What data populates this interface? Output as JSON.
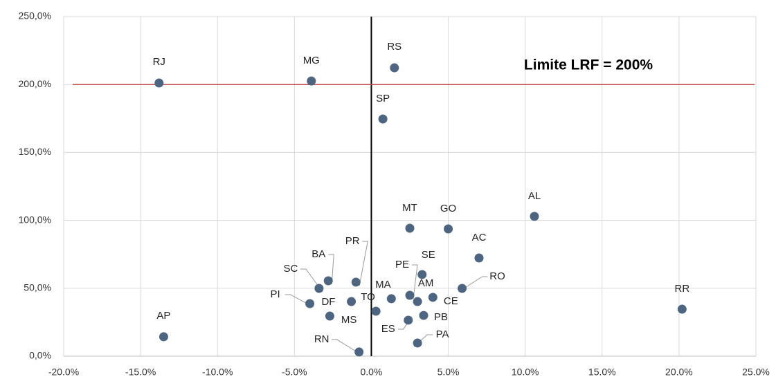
{
  "chart_data": {
    "type": "scatter",
    "point_labels": [
      "RJ",
      "MG",
      "RS",
      "SP",
      "AL",
      "MT",
      "GO",
      "AC",
      "SE",
      "RO",
      "PR",
      "BA",
      "SC",
      "PI",
      "DF",
      "TO",
      "MA",
      "PE",
      "AM",
      "CE",
      "MS",
      "ES",
      "PB",
      "PA",
      "RN",
      "AP",
      "RR"
    ],
    "x": [
      -13.8,
      -3.9,
      1.5,
      0.75,
      10.6,
      2.5,
      5.0,
      7.0,
      3.3,
      5.9,
      -1.0,
      -2.8,
      -3.4,
      -4.0,
      -2.7,
      -1.3,
      1.3,
      2.5,
      3.0,
      4.0,
      0.3,
      2.4,
      3.4,
      3.0,
      -0.8,
      -13.5,
      20.2
    ],
    "values": [
      201.1,
      202.6,
      212.3,
      174.6,
      102.9,
      94.2,
      93.7,
      72.3,
      60.1,
      49.9,
      54.5,
      55.5,
      49.9,
      38.7,
      29.5,
      40.2,
      42.3,
      44.8,
      40.2,
      43.3,
      33.1,
      26.5,
      30.0,
      9.7,
      3.1,
      14.3,
      34.6
    ],
    "color": "#4d6580",
    "xlim": [
      -20,
      25
    ],
    "xticks": [
      {
        "value": -20,
        "label": "-20.0%"
      },
      {
        "value": -15,
        "label": "-15.0%"
      },
      {
        "value": -10,
        "label": "-10.0%"
      },
      {
        "value": -5,
        "label": "-5.0%"
      },
      {
        "value": 0,
        "label": "0.0%"
      },
      {
        "value": 5,
        "label": "5.0%"
      },
      {
        "value": 10,
        "label": "10.0%"
      },
      {
        "value": 15,
        "label": "15.0%"
      },
      {
        "value": 20,
        "label": "20.0%"
      },
      {
        "value": 25,
        "label": "25.0%"
      }
    ],
    "ylim": [
      0,
      250
    ],
    "yticks": [
      {
        "value": 0,
        "label": "0,0%"
      },
      {
        "value": 50,
        "label": "50,0%"
      },
      {
        "value": 100,
        "label": "100,0%"
      },
      {
        "value": 150,
        "label": "150,0%"
      },
      {
        "value": 200,
        "label": "200,0%"
      },
      {
        "value": 250,
        "label": "250,0%"
      }
    ],
    "grid": true,
    "reference_line": {
      "value": 200,
      "label": "Limite LRF = 200%",
      "color": "#c0504d"
    }
  }
}
